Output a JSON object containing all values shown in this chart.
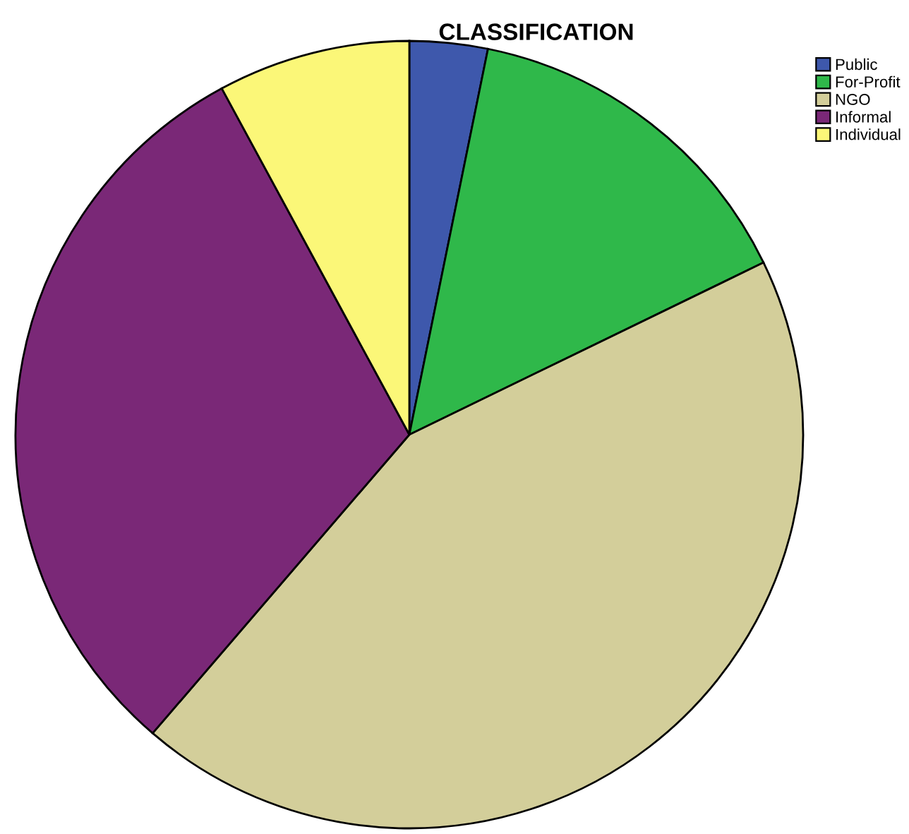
{
  "chart_data": {
    "type": "pie",
    "title": "CLASSIFICATION",
    "categories": [
      "Public",
      "For-Profit",
      "NGO",
      "Informal",
      "Individual"
    ],
    "values": [
      3.2,
      14.6,
      43.5,
      30.8,
      7.9
    ],
    "colors": [
      "#3e58ac",
      "#2fb84a",
      "#d3ce9a",
      "#7a2877",
      "#fbf778"
    ],
    "legend": "top right"
  }
}
